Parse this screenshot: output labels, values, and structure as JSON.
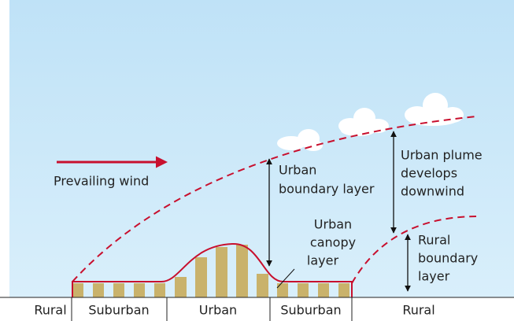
{
  "labels": {
    "prevailing_wind": "Prevailing wind",
    "urban_boundary_layer": [
      "Urban",
      "boundary layer"
    ],
    "urban_plume": [
      "Urban plume",
      "develops",
      "downwind"
    ],
    "urban_canopy_layer": [
      "Urban",
      "canopy",
      "layer"
    ],
    "rural_boundary_layer": [
      "Rural",
      "boundary",
      "layer"
    ]
  },
  "zones": [
    "Rural",
    "Suburban",
    "Urban",
    "Suburban",
    "Rural"
  ]
}
